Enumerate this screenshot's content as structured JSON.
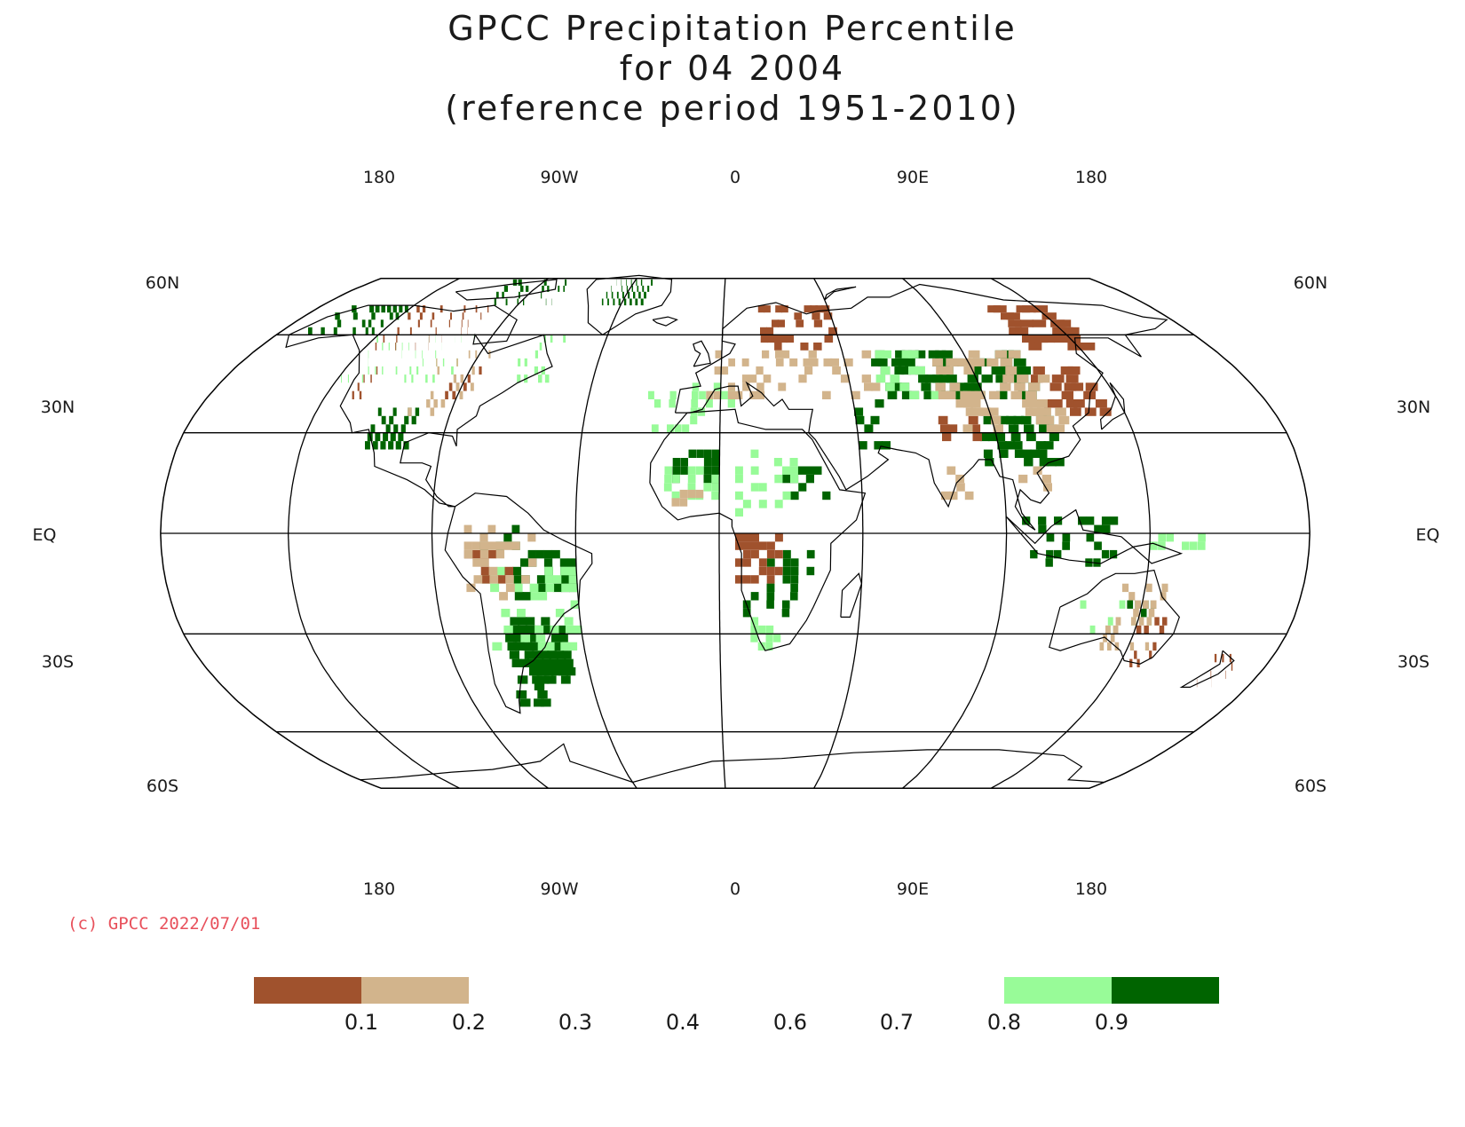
{
  "title": {
    "line1": "GPCC Precipitation Percentile",
    "line2": "for 04 2004",
    "line3": "(reference period 1951-2010)"
  },
  "map": {
    "projection": "Robinson",
    "lon_labels": [
      "180",
      "90W",
      "0",
      "90E",
      "180"
    ],
    "lat_labels_left": [
      "60N",
      "30N",
      "EQ",
      "30S",
      "60S"
    ],
    "lat_labels_right": [
      "60N",
      "30N",
      "EQ",
      "30S",
      "60S"
    ]
  },
  "copyright": "(c) GPCC 2022/07/01",
  "legend": {
    "colors": [
      "#a0522d",
      "#d2b48c",
      null,
      null,
      null,
      null,
      null,
      "#98fb98",
      "#006400"
    ],
    "ticks": [
      "0.1",
      "0.2",
      "0.3",
      "0.4",
      "0.6",
      "0.7",
      "0.8",
      "0.9"
    ]
  },
  "colors": {
    "very_dry": "#a0522d",
    "dry": "#d2b48c",
    "wet": "#98fb98",
    "very_wet": "#006400"
  }
}
